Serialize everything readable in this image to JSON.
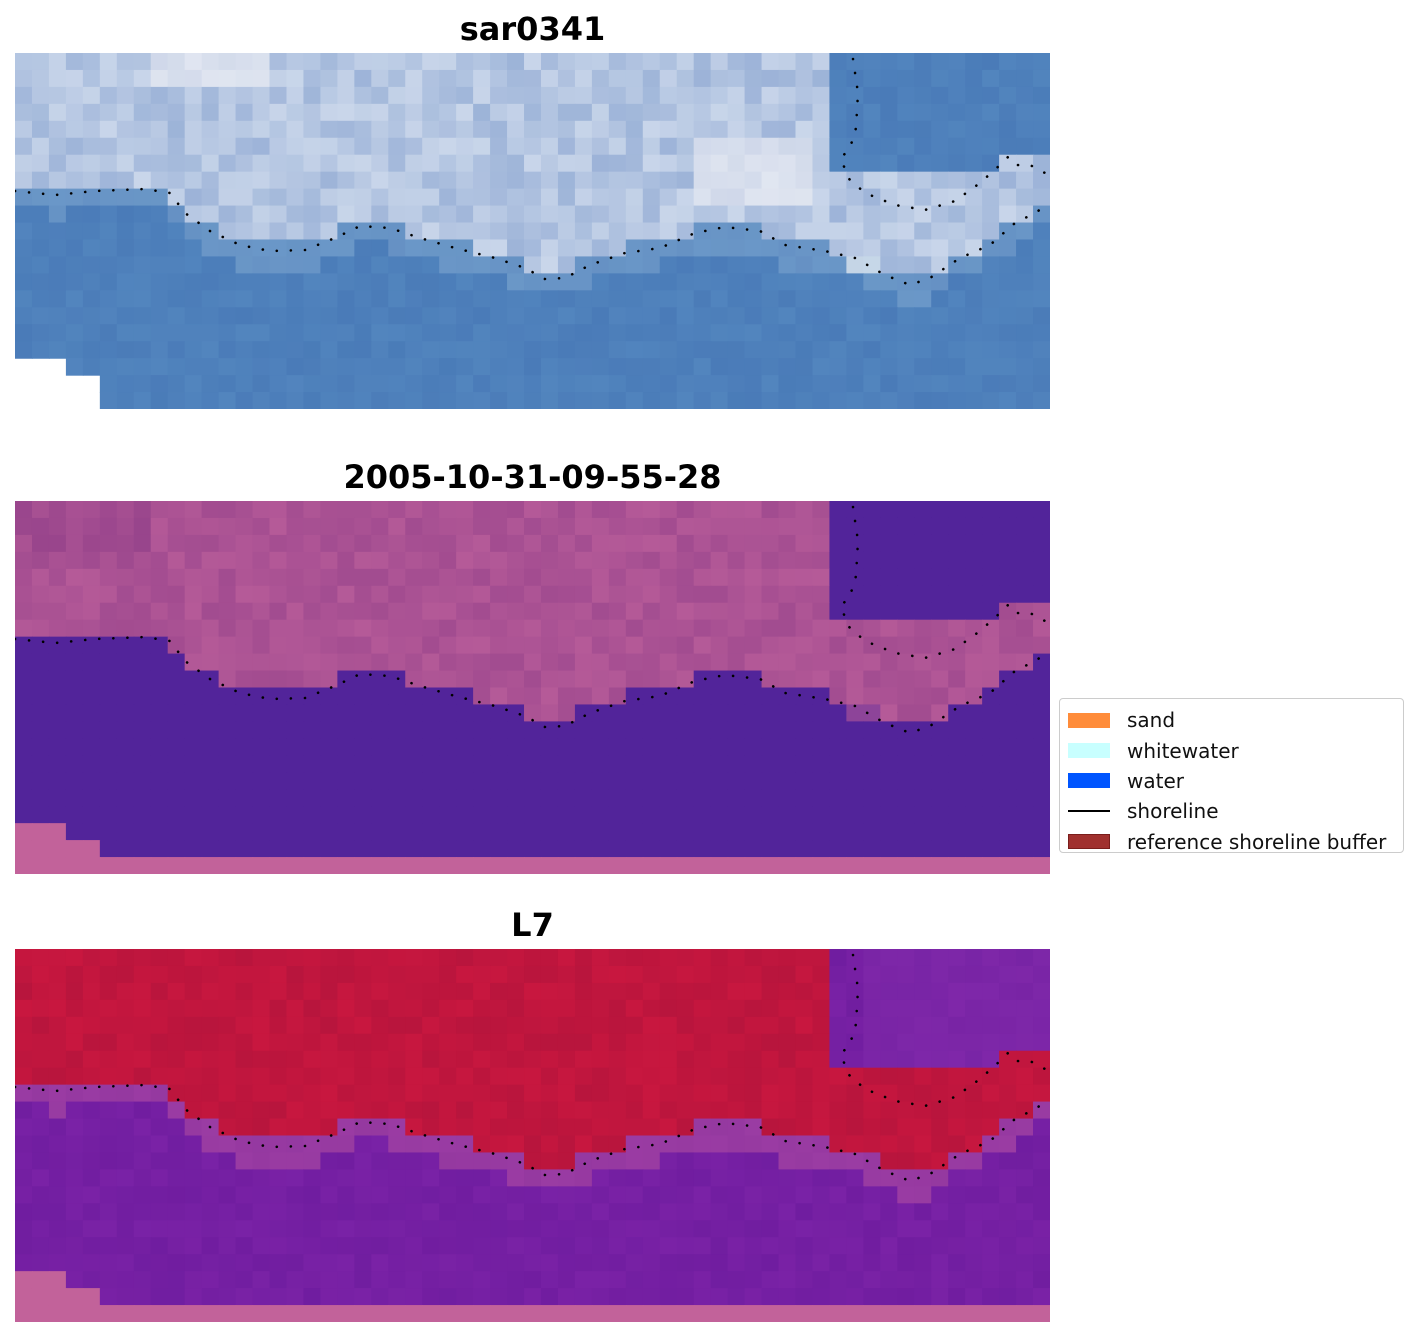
{
  "panels": [
    {
      "title": "sar0341",
      "style": "rgb"
    },
    {
      "title": "2005-10-31-09-55-28",
      "style": "classified"
    },
    {
      "title": "L7",
      "style": "index"
    }
  ],
  "legend": {
    "items": [
      {
        "label": "sand",
        "kind": "patch",
        "color": "#ff8c3a",
        "border": "#ff8c3a"
      },
      {
        "label": "whitewater",
        "kind": "patch",
        "color": "#c8ffff",
        "border": "#c8ffff"
      },
      {
        "label": "water",
        "kind": "patch",
        "color": "#0055ff",
        "border": "#0055ff"
      },
      {
        "label": "shoreline",
        "kind": "line",
        "color": "#000000"
      },
      {
        "label": "reference shoreline buffer",
        "kind": "patch",
        "color": "#a0302e",
        "border": "#7a1d1b"
      }
    ]
  },
  "colors": {
    "rgb_water": "#4a7bb8",
    "rgb_surf": "#c9d6ea",
    "classified_water": "#52249a",
    "classified_land": "#b55a98",
    "index_water": "#7a22a6",
    "index_land": "#c8173f",
    "nodata": "#c2629a",
    "shoreline_dots": "#000000"
  }
}
